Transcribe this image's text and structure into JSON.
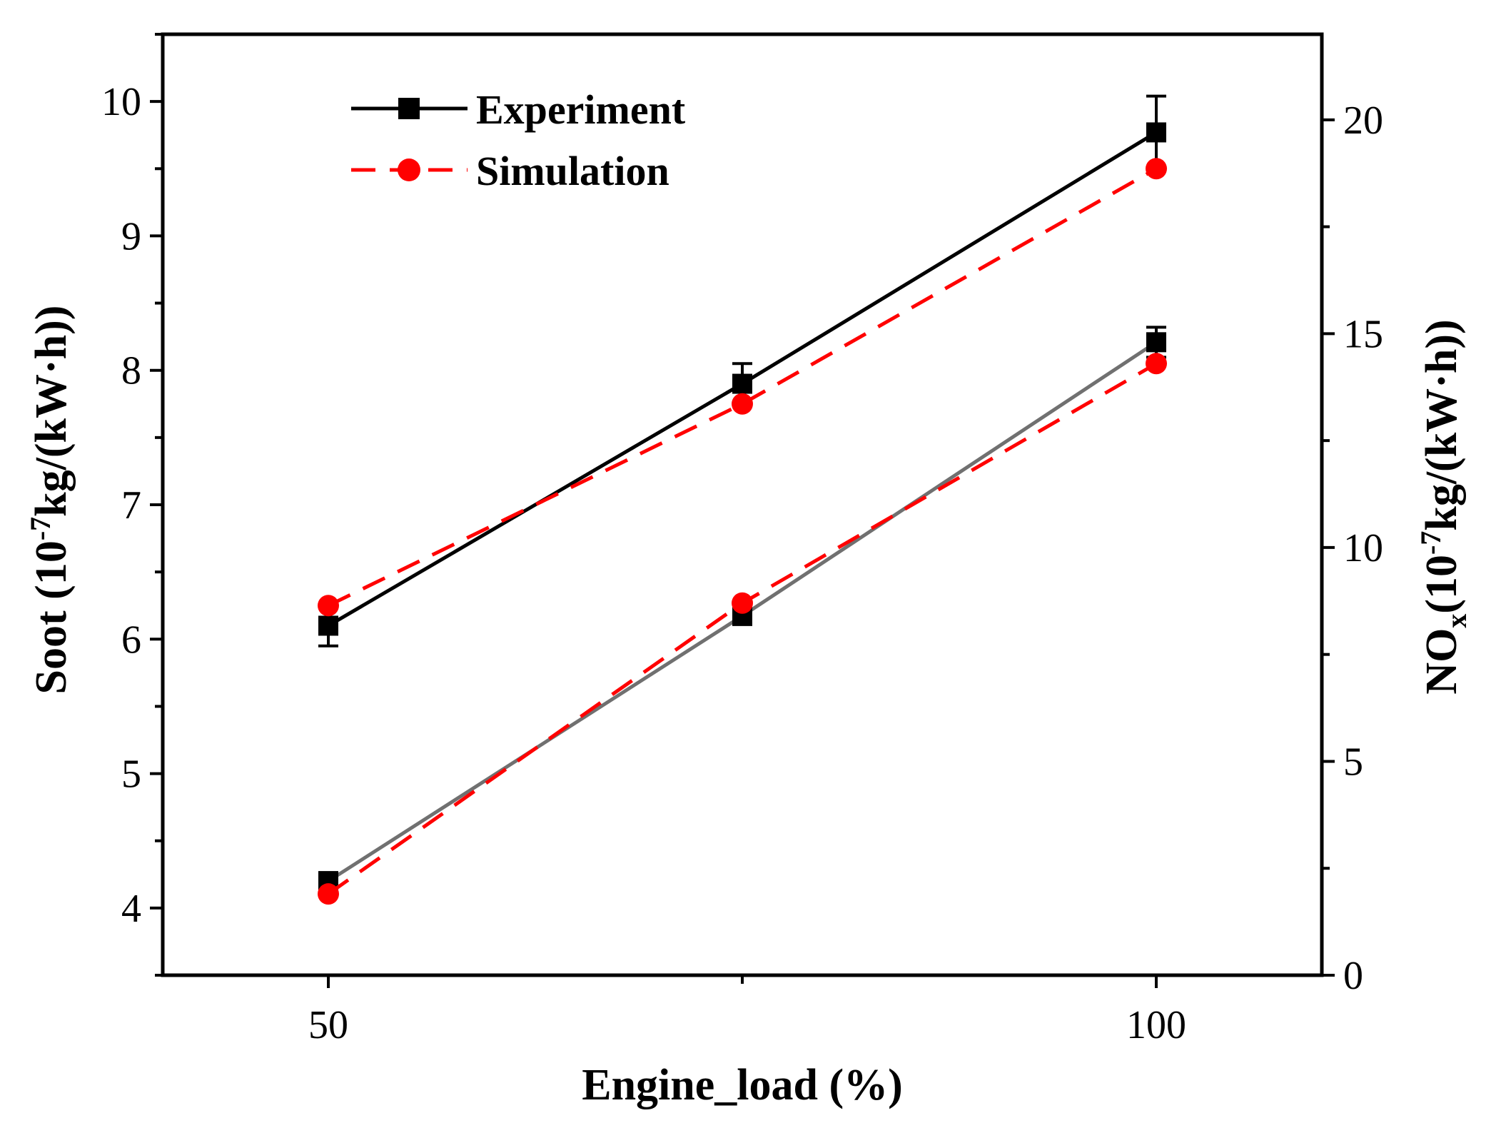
{
  "chart_data": {
    "type": "line",
    "x": [
      50,
      75,
      100
    ],
    "xlim": [
      40,
      110
    ],
    "x_ticks": [
      50,
      100
    ],
    "x_tick_labels": [
      "50",
      "100"
    ],
    "ylim_left": [
      3.5,
      10.5
    ],
    "ylim_right": [
      0,
      22
    ],
    "y_ticks_left": [
      4,
      5,
      6,
      7,
      8,
      9,
      10
    ],
    "y_tick_labels_left": [
      "4",
      "5",
      "6",
      "7",
      "8",
      "9",
      "10"
    ],
    "y_ticks_right": [
      0,
      5,
      10,
      15,
      20
    ],
    "y_tick_labels_right": [
      "0",
      "5",
      "10",
      "15",
      "20"
    ],
    "xlabel": "Engine_load (%)",
    "ylabel_left": {
      "main": "Soot (10",
      "sup": "-7",
      "rest": "kg/(kW·h))"
    },
    "ylabel_right": {
      "main": "NO",
      "sub": "x",
      "paren": "(10",
      "sup": "-7",
      "rest": "kg/(kW·h))"
    },
    "legend": {
      "position": "top-left",
      "entries": [
        "Experiment",
        "Simulation"
      ]
    },
    "colors": {
      "experiment": "#000000",
      "simulation": "#ff0000",
      "nox_experiment_line": "#707070"
    },
    "series": [
      {
        "name": "Experiment",
        "axis": "left",
        "metric": "Soot",
        "values": [
          6.1,
          7.9,
          9.77
        ],
        "error": [
          0.15,
          0.15,
          0.27
        ],
        "marker": "square",
        "line": "solid",
        "color": "#000000"
      },
      {
        "name": "Simulation",
        "axis": "left",
        "metric": "Soot",
        "values": [
          6.25,
          7.75,
          9.5
        ],
        "marker": "circle",
        "line": "dashed",
        "color": "#ff0000"
      },
      {
        "name": "Experiment",
        "axis": "right",
        "metric": "NOx",
        "values": [
          2.2,
          8.4,
          14.8
        ],
        "error": [
          0.2,
          0.2,
          0.35
        ],
        "marker": "square",
        "line": "solid",
        "color": "#707070"
      },
      {
        "name": "Simulation",
        "axis": "right",
        "metric": "NOx",
        "values": [
          1.9,
          8.7,
          14.3
        ],
        "marker": "circle",
        "line": "dashed",
        "color": "#ff0000"
      }
    ]
  }
}
